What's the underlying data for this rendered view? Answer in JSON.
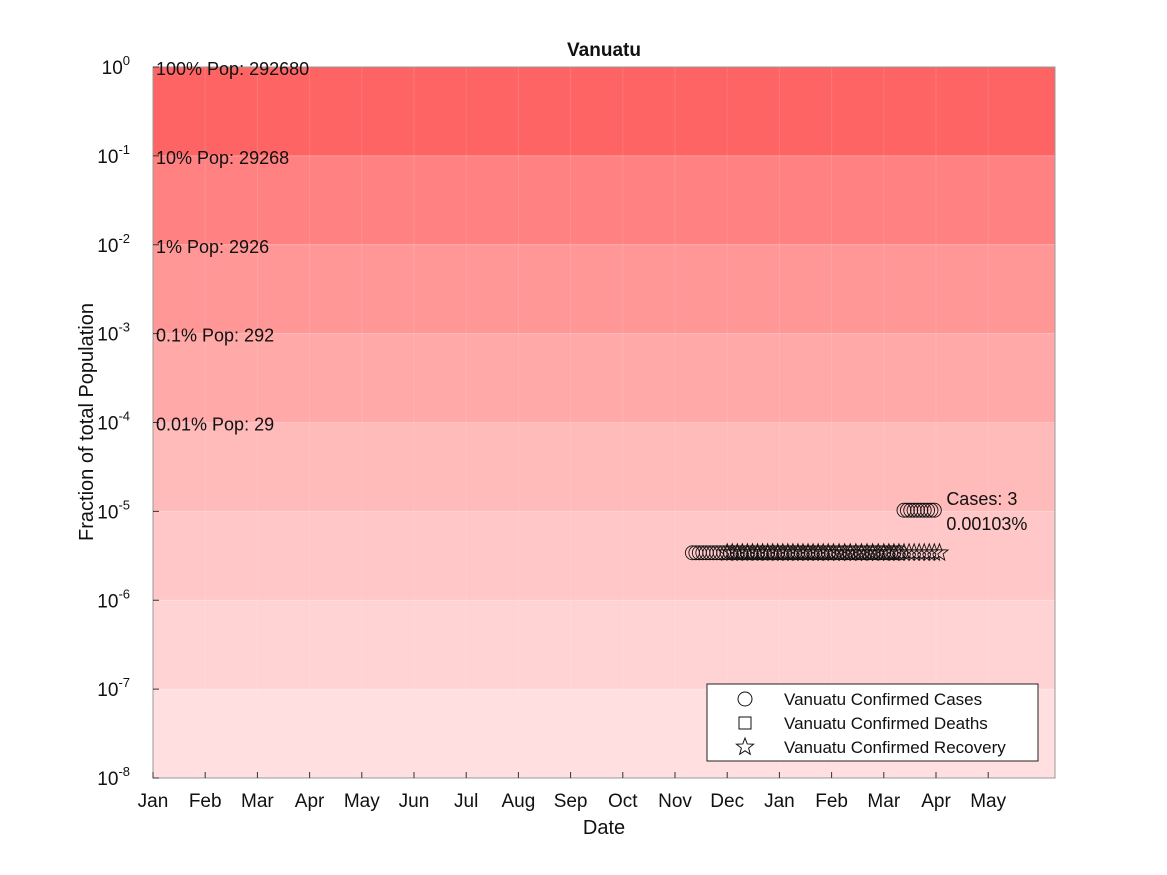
{
  "chart_data": {
    "type": "scatter",
    "title": "Vanuatu",
    "xlabel": "Date",
    "ylabel": "Fraction of total Population",
    "yscale": "log",
    "ylim": [
      1e-08,
      1
    ],
    "y_ticks": [
      {
        "base": "10",
        "exp": "0"
      },
      {
        "base": "10",
        "exp": "-1"
      },
      {
        "base": "10",
        "exp": "-2"
      },
      {
        "base": "10",
        "exp": "-3"
      },
      {
        "base": "10",
        "exp": "-4"
      },
      {
        "base": "10",
        "exp": "-5"
      },
      {
        "base": "10",
        "exp": "-6"
      },
      {
        "base": "10",
        "exp": "-7"
      },
      {
        "base": "10",
        "exp": "-8"
      }
    ],
    "x_ticks": [
      "Jan",
      "Feb",
      "Mar",
      "Apr",
      "May",
      "Jun",
      "Jul",
      "Aug",
      "Sep",
      "Oct",
      "Nov",
      "Dec",
      "Jan",
      "Feb",
      "Mar",
      "Apr",
      "May"
    ],
    "grid": true,
    "population_bands": [
      {
        "label": "100% Pop: 292680",
        "fraction": 1,
        "color": "#ff6464"
      },
      {
        "label": "10% Pop: 29268",
        "fraction": 0.1,
        "color": "#ff8181"
      },
      {
        "label": "1% Pop: 2926",
        "fraction": 0.01,
        "color": "#ff9797"
      },
      {
        "label": "0.1% Pop: 292",
        "fraction": 0.001,
        "color": "#ffa9a9"
      },
      {
        "label": "0.01% Pop: 29",
        "fraction": 0.0001,
        "color": "#ffbaba"
      },
      {
        "label": "",
        "fraction": 1e-05,
        "color": "#ffc7c7"
      },
      {
        "label": "",
        "fraction": 1e-06,
        "color": "#ffd3d3"
      },
      {
        "label": "",
        "fraction": 1e-07,
        "color": "#ffdfdf"
      }
    ],
    "series": [
      {
        "name": "Vanuatu Confirmed Cases",
        "marker": "circle",
        "points": [
          {
            "x": "Nov 11",
            "y": 3.42e-06
          },
          {
            "x": "Nov 13",
            "y": 3.42e-06
          },
          {
            "x": "Nov 15",
            "y": 3.42e-06
          },
          {
            "x": "Nov 17",
            "y": 3.42e-06
          },
          {
            "x": "Nov 19",
            "y": 3.42e-06
          },
          {
            "x": "Nov 21",
            "y": 3.42e-06
          },
          {
            "x": "Nov 23",
            "y": 3.42e-06
          },
          {
            "x": "Nov 25",
            "y": 3.42e-06
          },
          {
            "x": "Nov 27",
            "y": 3.42e-06
          },
          {
            "x": "Nov 29",
            "y": 3.42e-06
          },
          {
            "x": "Dec 1",
            "y": 3.42e-06
          },
          {
            "x": "Dec 3",
            "y": 3.42e-06
          },
          {
            "x": "Dec 5",
            "y": 3.42e-06
          },
          {
            "x": "Dec 7",
            "y": 3.42e-06
          },
          {
            "x": "Dec 9",
            "y": 3.42e-06
          },
          {
            "x": "Dec 11",
            "y": 3.42e-06
          },
          {
            "x": "Dec 13",
            "y": 3.42e-06
          },
          {
            "x": "Dec 15",
            "y": 3.42e-06
          },
          {
            "x": "Dec 17",
            "y": 3.42e-06
          },
          {
            "x": "Dec 19",
            "y": 3.42e-06
          },
          {
            "x": "Dec 21",
            "y": 3.42e-06
          },
          {
            "x": "Dec 23",
            "y": 3.42e-06
          },
          {
            "x": "Dec 25",
            "y": 3.42e-06
          },
          {
            "x": "Dec 27",
            "y": 3.42e-06
          },
          {
            "x": "Dec 29",
            "y": 3.42e-06
          },
          {
            "x": "Dec 31",
            "y": 3.42e-06
          },
          {
            "x": "Jan 2",
            "y": 3.42e-06
          },
          {
            "x": "Jan 4",
            "y": 3.42e-06
          },
          {
            "x": "Jan 6",
            "y": 3.42e-06
          },
          {
            "x": "Jan 8",
            "y": 3.42e-06
          },
          {
            "x": "Jan 10",
            "y": 3.42e-06
          },
          {
            "x": "Jan 12",
            "y": 3.42e-06
          },
          {
            "x": "Jan 14",
            "y": 3.42e-06
          },
          {
            "x": "Jan 16",
            "y": 3.42e-06
          },
          {
            "x": "Jan 18",
            "y": 3.42e-06
          },
          {
            "x": "Jan 20",
            "y": 3.42e-06
          },
          {
            "x": "Jan 22",
            "y": 3.42e-06
          },
          {
            "x": "Jan 24",
            "y": 3.42e-06
          },
          {
            "x": "Jan 26",
            "y": 3.42e-06
          },
          {
            "x": "Jan 28",
            "y": 3.42e-06
          },
          {
            "x": "Jan 30",
            "y": 3.42e-06
          },
          {
            "x": "Feb 1",
            "y": 3.42e-06
          },
          {
            "x": "Feb 3",
            "y": 3.42e-06
          },
          {
            "x": "Feb 5",
            "y": 3.42e-06
          },
          {
            "x": "Feb 7",
            "y": 3.42e-06
          },
          {
            "x": "Feb 9",
            "y": 3.42e-06
          },
          {
            "x": "Feb 11",
            "y": 3.42e-06
          },
          {
            "x": "Feb 13",
            "y": 3.42e-06
          },
          {
            "x": "Feb 15",
            "y": 3.42e-06
          },
          {
            "x": "Feb 17",
            "y": 3.42e-06
          },
          {
            "x": "Feb 19",
            "y": 3.42e-06
          },
          {
            "x": "Feb 21",
            "y": 3.42e-06
          },
          {
            "x": "Feb 23",
            "y": 3.42e-06
          },
          {
            "x": "Feb 25",
            "y": 3.42e-06
          },
          {
            "x": "Feb 27",
            "y": 3.42e-06
          },
          {
            "x": "Mar 1",
            "y": 3.42e-06
          },
          {
            "x": "Mar 3",
            "y": 3.42e-06
          },
          {
            "x": "Mar 5",
            "y": 3.42e-06
          },
          {
            "x": "Mar 7",
            "y": 3.42e-06
          },
          {
            "x": "Mar 9",
            "y": 3.42e-06
          },
          {
            "x": "Mar 11",
            "y": 3.42e-06
          },
          {
            "x": "Mar 13",
            "y": 1.03e-05
          },
          {
            "x": "Mar 15",
            "y": 1.03e-05
          },
          {
            "x": "Mar 17",
            "y": 1.03e-05
          },
          {
            "x": "Mar 19",
            "y": 1.03e-05
          },
          {
            "x": "Mar 21",
            "y": 1.03e-05
          },
          {
            "x": "Mar 23",
            "y": 1.03e-05
          },
          {
            "x": "Mar 25",
            "y": 1.03e-05
          },
          {
            "x": "Mar 27",
            "y": 1.03e-05
          },
          {
            "x": "Mar 29",
            "y": 1.03e-05
          },
          {
            "x": "Mar 31",
            "y": 1.03e-05
          }
        ]
      },
      {
        "name": "Vanuatu Confirmed Deaths",
        "marker": "square",
        "points": []
      },
      {
        "name": "Vanuatu Confirmed Recovery",
        "marker": "star",
        "points": [
          {
            "x": "Dec 1",
            "y": 3.42e-06
          },
          {
            "x": "Dec 4",
            "y": 3.42e-06
          },
          {
            "x": "Dec 7",
            "y": 3.42e-06
          },
          {
            "x": "Dec 10",
            "y": 3.42e-06
          },
          {
            "x": "Dec 13",
            "y": 3.42e-06
          },
          {
            "x": "Dec 16",
            "y": 3.42e-06
          },
          {
            "x": "Dec 19",
            "y": 3.42e-06
          },
          {
            "x": "Dec 22",
            "y": 3.42e-06
          },
          {
            "x": "Dec 25",
            "y": 3.42e-06
          },
          {
            "x": "Dec 28",
            "y": 3.42e-06
          },
          {
            "x": "Dec 31",
            "y": 3.42e-06
          },
          {
            "x": "Jan 3",
            "y": 3.42e-06
          },
          {
            "x": "Jan 6",
            "y": 3.42e-06
          },
          {
            "x": "Jan 9",
            "y": 3.42e-06
          },
          {
            "x": "Jan 12",
            "y": 3.42e-06
          },
          {
            "x": "Jan 15",
            "y": 3.42e-06
          },
          {
            "x": "Jan 18",
            "y": 3.42e-06
          },
          {
            "x": "Jan 21",
            "y": 3.42e-06
          },
          {
            "x": "Jan 24",
            "y": 3.42e-06
          },
          {
            "x": "Jan 27",
            "y": 3.42e-06
          },
          {
            "x": "Jan 30",
            "y": 3.42e-06
          },
          {
            "x": "Feb 2",
            "y": 3.42e-06
          },
          {
            "x": "Feb 5",
            "y": 3.42e-06
          },
          {
            "x": "Feb 8",
            "y": 3.42e-06
          },
          {
            "x": "Feb 11",
            "y": 3.42e-06
          },
          {
            "x": "Feb 14",
            "y": 3.42e-06
          },
          {
            "x": "Feb 17",
            "y": 3.42e-06
          },
          {
            "x": "Feb 20",
            "y": 3.42e-06
          },
          {
            "x": "Feb 23",
            "y": 3.42e-06
          },
          {
            "x": "Feb 26",
            "y": 3.42e-06
          },
          {
            "x": "Mar 1",
            "y": 3.42e-06
          },
          {
            "x": "Mar 4",
            "y": 3.42e-06
          },
          {
            "x": "Mar 7",
            "y": 3.42e-06
          },
          {
            "x": "Mar 10",
            "y": 3.42e-06
          },
          {
            "x": "Mar 13",
            "y": 3.42e-06
          },
          {
            "x": "Mar 16",
            "y": 3.42e-06
          },
          {
            "x": "Mar 19",
            "y": 3.42e-06
          },
          {
            "x": "Mar 22",
            "y": 3.42e-06
          },
          {
            "x": "Mar 25",
            "y": 3.42e-06
          },
          {
            "x": "Mar 28",
            "y": 3.42e-06
          },
          {
            "x": "Mar 31",
            "y": 3.42e-06
          },
          {
            "x": "Apr 3",
            "y": 3.42e-06
          }
        ]
      }
    ],
    "annotation": {
      "x": "Mar 31",
      "y": 1.03e-05,
      "lines": [
        "Cases: 3",
        "0.00103%"
      ]
    },
    "legend": {
      "position": "bottom-right",
      "entries": [
        "Vanuatu Confirmed Cases",
        "Vanuatu Confirmed Deaths",
        "Vanuatu Confirmed Recovery"
      ]
    }
  }
}
